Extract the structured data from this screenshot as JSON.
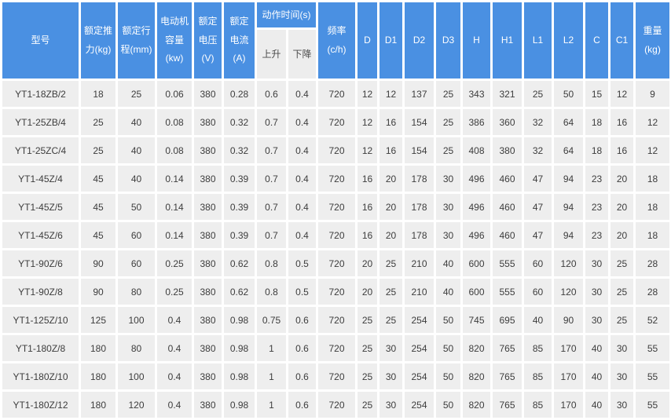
{
  "table": {
    "header": {
      "model": "型号",
      "thrust": "额定推\n力(kg)",
      "stroke": "额定行\n程(mm)",
      "motor": "电动机\n容量\n(kw)",
      "voltage": "额定\n电压\n(V)",
      "current": "额定\n电流\n(A)",
      "action_time": "动作时间(s)",
      "up": "上升",
      "down": "下降",
      "frequency": "频率\n(c/h)",
      "dims": [
        "D",
        "D1",
        "D2",
        "D3",
        "H",
        "H1",
        "L1",
        "L2",
        "C",
        "C1"
      ],
      "weight": "重量\n(kg)"
    },
    "rows": [
      [
        "YT1-18ZB/2",
        "18",
        "25",
        "0.06",
        "380",
        "0.28",
        "0.6",
        "0.4",
        "720",
        "12",
        "12",
        "137",
        "25",
        "343",
        "321",
        "25",
        "50",
        "15",
        "12",
        "9"
      ],
      [
        "YT1-25ZB/4",
        "25",
        "40",
        "0.08",
        "380",
        "0.32",
        "0.7",
        "0.4",
        "720",
        "12",
        "16",
        "154",
        "25",
        "386",
        "360",
        "32",
        "64",
        "18",
        "16",
        "12"
      ],
      [
        "YT1-25ZC/4",
        "25",
        "40",
        "0.08",
        "380",
        "0.32",
        "0.7",
        "0.4",
        "720",
        "12",
        "16",
        "154",
        "25",
        "408",
        "380",
        "32",
        "64",
        "18",
        "16",
        "12"
      ],
      [
        "YT1-45Z/4",
        "45",
        "40",
        "0.14",
        "380",
        "0.39",
        "0.7",
        "0.4",
        "720",
        "16",
        "20",
        "178",
        "30",
        "496",
        "460",
        "47",
        "94",
        "23",
        "20",
        "18"
      ],
      [
        "YT1-45Z/5",
        "45",
        "50",
        "0.14",
        "380",
        "0.39",
        "0.7",
        "0.4",
        "720",
        "16",
        "20",
        "178",
        "30",
        "496",
        "460",
        "47",
        "94",
        "23",
        "20",
        "18"
      ],
      [
        "YT1-45Z/6",
        "45",
        "60",
        "0.14",
        "380",
        "0.39",
        "0.7",
        "0.4",
        "720",
        "16",
        "20",
        "178",
        "30",
        "496",
        "460",
        "47",
        "94",
        "23",
        "20",
        "18"
      ],
      [
        "YT1-90Z/6",
        "90",
        "60",
        "0.25",
        "380",
        "0.62",
        "0.8",
        "0.5",
        "720",
        "20",
        "25",
        "210",
        "40",
        "600",
        "555",
        "60",
        "120",
        "30",
        "25",
        "28"
      ],
      [
        "YT1-90Z/8",
        "90",
        "80",
        "0.25",
        "380",
        "0.62",
        "0.8",
        "0.5",
        "720",
        "20",
        "25",
        "210",
        "40",
        "600",
        "555",
        "60",
        "120",
        "30",
        "25",
        "28"
      ],
      [
        "YT1-125Z/10",
        "125",
        "100",
        "0.4",
        "380",
        "0.98",
        "0.75",
        "0.6",
        "720",
        "25",
        "25",
        "254",
        "50",
        "745",
        "695",
        "40",
        "90",
        "30",
        "25",
        "52"
      ],
      [
        "YT1-180Z/8",
        "180",
        "80",
        "0.4",
        "380",
        "0.98",
        "1",
        "0.6",
        "720",
        "25",
        "30",
        "254",
        "50",
        "820",
        "765",
        "85",
        "170",
        "40",
        "30",
        "55"
      ],
      [
        "YT1-180Z/10",
        "180",
        "100",
        "0.4",
        "380",
        "0.98",
        "1",
        "0.6",
        "720",
        "25",
        "30",
        "254",
        "50",
        "820",
        "765",
        "85",
        "170",
        "40",
        "30",
        "55"
      ],
      [
        "YT1-180Z/12",
        "180",
        "120",
        "0.4",
        "380",
        "0.98",
        "1",
        "0.6",
        "720",
        "25",
        "30",
        "254",
        "50",
        "820",
        "765",
        "85",
        "170",
        "40",
        "30",
        "55"
      ]
    ]
  },
  "colors": {
    "header_blue": "#4A90E2",
    "cell_gray": "#EEEEEE",
    "subheader_gray": "#EDEDED",
    "data_text": "#3d3d3d",
    "header_text": "#ffffff",
    "background": "#ffffff"
  }
}
